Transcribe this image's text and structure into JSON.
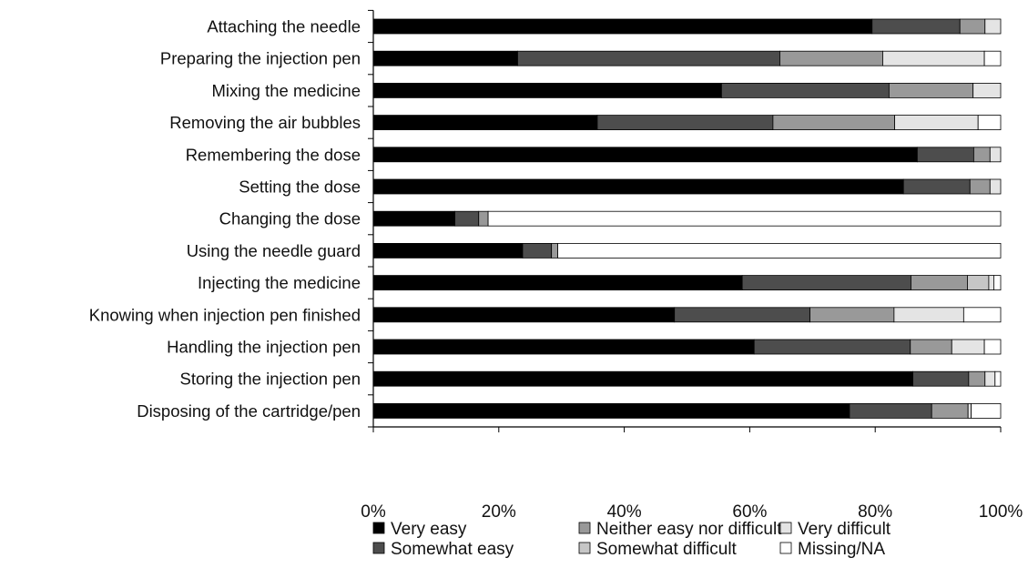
{
  "chart_data": {
    "type": "bar",
    "orientation": "horizontal",
    "stacked": true,
    "percent": true,
    "categories": [
      "Attaching the needle",
      "Preparing the injection pen",
      "Mixing the medicine",
      "Removing the air bubbles",
      "Remembering the dose",
      "Setting the dose",
      "Changing the dose",
      "Using the needle guard",
      "Injecting the medicine",
      "Knowing when injection pen finished",
      "Handling the injection pen",
      "Storing the injection pen",
      "Disposing of the cartridge/pen"
    ],
    "series": [
      {
        "name": "Very easy",
        "color": "#000000",
        "values": [
          79.5,
          23.0,
          55.5,
          35.7,
          86.7,
          84.5,
          13.0,
          23.8,
          58.8,
          48.0,
          60.7,
          86.0,
          75.9
        ]
      },
      {
        "name": "Somewhat easy",
        "color": "#4d4d4d",
        "values": [
          14.0,
          41.8,
          26.7,
          28.0,
          9.0,
          10.6,
          3.8,
          4.6,
          26.9,
          21.6,
          24.9,
          8.9,
          13.1
        ]
      },
      {
        "name": "Neither easy nor difficult",
        "color": "#999999",
        "values": [
          4.0,
          16.4,
          13.4,
          19.4,
          2.6,
          3.2,
          1.5,
          1.0,
          9.0,
          13.4,
          6.6,
          2.6,
          5.8
        ]
      },
      {
        "name": "Somewhat difficult",
        "color": "#c6c6c6",
        "values": [
          0.0,
          0.0,
          0.0,
          0.0,
          0.0,
          0.0,
          0.0,
          0.0,
          3.4,
          0.0,
          0.0,
          0.0,
          0.0
        ]
      },
      {
        "name": "Very difficult",
        "color": "#e4e4e4",
        "values": [
          2.5,
          16.2,
          4.4,
          13.3,
          1.7,
          1.7,
          0.0,
          0.0,
          0.8,
          11.1,
          5.2,
          1.6,
          0.5
        ]
      },
      {
        "name": "Missing/NA",
        "color": "#ffffff",
        "values": [
          0.0,
          2.6,
          0.0,
          3.6,
          0.0,
          0.0,
          81.7,
          70.6,
          1.1,
          5.9,
          2.6,
          0.9,
          4.7
        ]
      }
    ],
    "xlim": [
      0,
      100
    ],
    "x_ticks": [
      "0%",
      "20%",
      "40%",
      "60%",
      "80%",
      "100%"
    ],
    "x_tick_values": [
      0,
      20,
      40,
      60,
      80,
      100
    ],
    "legend": {
      "position": "bottom",
      "columns": [
        [
          "Very easy",
          "Somewhat easy"
        ],
        [
          "Neither easy nor difficult",
          "Somewhat difficult"
        ],
        [
          "Very difficult",
          "Missing/NA"
        ]
      ]
    },
    "grid": false
  }
}
